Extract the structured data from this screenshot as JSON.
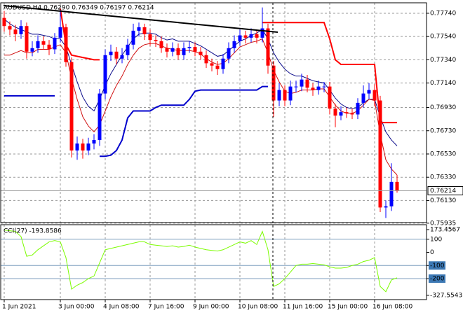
{
  "chart_data": [
    {
      "type": "candlestick",
      "header": "AUDUSD,H4  0.76290 0.76349 0.76197 0.76214",
      "categories": [
        "1 Jun 2021",
        null,
        null,
        null,
        null,
        null,
        null,
        null,
        null,
        null,
        "3 Jun 00:00",
        null,
        null,
        null,
        null,
        null,
        null,
        null,
        "4 Jun 08:00",
        null,
        null,
        null,
        null,
        null,
        null,
        null,
        "7 Jun 16:00",
        null,
        null,
        null,
        null,
        null,
        null,
        null,
        "9 Jun 00:00",
        null,
        null,
        null,
        null,
        null,
        null,
        null,
        "10 Jun 08:00",
        null,
        null,
        null,
        null,
        null,
        null,
        null,
        "11 Jun 16:00",
        null,
        null,
        null,
        null,
        null,
        null,
        null,
        "15 Jun 00:00",
        null,
        null,
        null,
        null,
        null,
        null,
        null,
        "16 Jun 08:00",
        null,
        null,
        null,
        null
      ],
      "open": [
        0.777,
        0.7763,
        0.776,
        0.7756,
        0.7763,
        0.7741,
        0.7744,
        0.775,
        0.7747,
        0.7743,
        0.7753,
        0.7762,
        0.7732,
        0.7656,
        0.7662,
        0.7656,
        0.7662,
        0.7665,
        0.7705,
        0.7738,
        0.7741,
        0.7735,
        0.7738,
        0.7747,
        0.7759,
        0.7762,
        0.7756,
        0.7751,
        0.775,
        0.7744,
        0.7741,
        0.7744,
        0.7738,
        0.7744,
        0.7745,
        0.7741,
        0.7738,
        0.7731,
        0.7729,
        0.7726,
        0.7735,
        0.7744,
        0.775,
        0.7755,
        0.7753,
        0.7756,
        0.7753,
        0.7761,
        0.7729,
        0.7699,
        0.7708,
        0.7699,
        0.7711,
        0.7711,
        0.7717,
        0.771,
        0.7708,
        0.7711,
        0.7711,
        0.7692,
        0.7686,
        0.7689,
        0.7688,
        0.7687,
        0.7697,
        0.7705,
        0.7708,
        0.7699,
        0.7607,
        0.7608,
        0.7629
      ],
      "high": [
        0.7776,
        0.7767,
        0.7764,
        0.7768,
        0.7766,
        0.775,
        0.7755,
        0.7754,
        0.7751,
        0.7757,
        0.7777,
        0.7765,
        0.7736,
        0.7668,
        0.7666,
        0.7667,
        0.767,
        0.7709,
        0.7743,
        0.7747,
        0.7745,
        0.7744,
        0.7752,
        0.7765,
        0.7766,
        0.7765,
        0.776,
        0.7755,
        0.7754,
        0.7748,
        0.7749,
        0.7748,
        0.7749,
        0.775,
        0.7749,
        0.7745,
        0.7742,
        0.7735,
        0.7733,
        0.7739,
        0.7749,
        0.7755,
        0.776,
        0.7759,
        0.7761,
        0.776,
        0.7779,
        0.7765,
        0.7733,
        0.7714,
        0.7712,
        0.7716,
        0.7716,
        0.7722,
        0.7721,
        0.7714,
        0.7716,
        0.7715,
        0.7715,
        0.7696,
        0.7694,
        0.7693,
        0.7692,
        0.7701,
        0.7712,
        0.7714,
        0.7713,
        0.7703,
        0.7613,
        0.7645,
        0.76349
      ],
      "low": [
        0.7758,
        0.7755,
        0.775,
        0.7752,
        0.7735,
        0.7737,
        0.774,
        0.7743,
        0.7738,
        0.7739,
        0.7749,
        0.7728,
        0.765,
        0.7648,
        0.7649,
        0.7652,
        0.7657,
        0.766,
        0.77,
        0.7733,
        0.773,
        0.7731,
        0.7734,
        0.7743,
        0.7754,
        0.7751,
        0.7746,
        0.7745,
        0.774,
        0.7736,
        0.7737,
        0.7734,
        0.7734,
        0.774,
        0.7737,
        0.7734,
        0.7727,
        0.7724,
        0.7721,
        0.7722,
        0.7731,
        0.774,
        0.7746,
        0.7748,
        0.7749,
        0.7748,
        0.7749,
        0.7722,
        0.7685,
        0.7694,
        0.7694,
        0.7695,
        0.7706,
        0.7707,
        0.7706,
        0.7703,
        0.7704,
        0.7706,
        0.7687,
        0.7676,
        0.7682,
        0.7684,
        0.7683,
        0.7683,
        0.7693,
        0.77,
        0.7694,
        0.7603,
        0.7598,
        0.7604,
        0.76197
      ],
      "close": [
        0.7763,
        0.776,
        0.7756,
        0.7763,
        0.7741,
        0.7744,
        0.775,
        0.7747,
        0.7743,
        0.7753,
        0.7762,
        0.7732,
        0.7656,
        0.7662,
        0.7656,
        0.7662,
        0.7665,
        0.7705,
        0.7738,
        0.7741,
        0.7735,
        0.7738,
        0.7747,
        0.7759,
        0.7762,
        0.7756,
        0.7751,
        0.775,
        0.7744,
        0.7741,
        0.7744,
        0.7738,
        0.7744,
        0.7745,
        0.7741,
        0.7738,
        0.7731,
        0.7729,
        0.7726,
        0.7735,
        0.7744,
        0.775,
        0.7755,
        0.7753,
        0.7756,
        0.7753,
        0.7761,
        0.7729,
        0.7699,
        0.7708,
        0.7699,
        0.7711,
        0.7711,
        0.7717,
        0.771,
        0.7708,
        0.7711,
        0.7711,
        0.7692,
        0.7686,
        0.7689,
        0.7688,
        0.7687,
        0.7697,
        0.7705,
        0.7708,
        0.7699,
        0.7607,
        0.7608,
        0.7629,
        0.76214
      ],
      "up_color": "#0000ff",
      "down_color": "#ff0000",
      "series": [
        {
          "color": "#0b0b8a",
          "width": 1,
          "values": [
            0.7769,
            0.7765,
            0.7762,
            0.776,
            0.7758,
            0.7756,
            0.7756,
            0.7755,
            0.7754,
            0.7752,
            0.7752,
            0.7745,
            0.773,
            0.7715,
            0.7702,
            0.7694,
            0.769,
            0.77,
            0.7712,
            0.7722,
            0.773,
            0.7738,
            0.7745,
            0.7752,
            0.7756,
            0.7757,
            0.7757,
            0.7756,
            0.7753,
            0.7751,
            0.7752,
            0.775,
            0.775,
            0.775,
            0.7748,
            0.7746,
            0.7743,
            0.774,
            0.7737,
            0.7738,
            0.7742,
            0.7746,
            0.775,
            0.7752,
            0.7755,
            0.7757,
            0.776,
            0.7752,
            0.774,
            0.7732,
            0.7726,
            0.7722,
            0.772,
            0.772,
            0.7718,
            0.7716,
            0.7715,
            0.7714,
            0.7708,
            0.7701,
            0.7696,
            0.7693,
            0.7692,
            0.7693,
            0.7697,
            0.77,
            0.77,
            0.7685,
            0.7672,
            0.7665,
            0.766
          ]
        },
        {
          "color": "#d01010",
          "width": 1,
          "values": [
            0.7738,
            0.7738,
            0.774,
            0.7742,
            0.774,
            0.774,
            0.7743,
            0.7743,
            0.7743,
            0.7745,
            0.7747,
            0.774,
            0.7718,
            0.77,
            0.7685,
            0.7677,
            0.7672,
            0.7678,
            0.769,
            0.7702,
            0.7712,
            0.772,
            0.773,
            0.7738,
            0.7744,
            0.7747,
            0.7748,
            0.7748,
            0.7746,
            0.7744,
            0.7743,
            0.7742,
            0.7742,
            0.7742,
            0.7741,
            0.7739,
            0.7735,
            0.7732,
            0.773,
            0.7731,
            0.7735,
            0.774,
            0.7745,
            0.7747,
            0.7749,
            0.775,
            0.7752,
            0.774,
            0.7725,
            0.7715,
            0.7707,
            0.7705,
            0.7706,
            0.7708,
            0.7708,
            0.7708,
            0.7709,
            0.7709,
            0.7702,
            0.7695,
            0.769,
            0.7688,
            0.7688,
            0.769,
            0.7695,
            0.77,
            0.7699,
            0.767,
            0.7648,
            0.764,
            0.7635
          ]
        },
        {
          "color": "#ff0000",
          "width": 2,
          "values": [
            null,
            null,
            null,
            null,
            null,
            null,
            null,
            null,
            null,
            null,
            0.7778,
            0.7747,
            0.7738,
            0.7737,
            0.7736,
            0.7735,
            0.7734,
            0.7734,
            null,
            null,
            null,
            null,
            null,
            null,
            null,
            null,
            null,
            null,
            null,
            null,
            null,
            null,
            null,
            null,
            null,
            null,
            null,
            null,
            null,
            null,
            null,
            null,
            null,
            null,
            null,
            null,
            0.7766,
            0.7766,
            0.7766,
            0.7766,
            0.7766,
            0.7766,
            0.7766,
            0.7766,
            0.7766,
            0.7766,
            0.7766,
            0.7766,
            0.7752,
            0.7734,
            0.773,
            0.773,
            0.773,
            0.773,
            0.773,
            0.773,
            0.773,
            0.768,
            0.768,
            0.768,
            0.768
          ]
        },
        {
          "color": "#0000cc",
          "width": 2,
          "values": [
            0.7703,
            0.7703,
            0.7703,
            0.7703,
            0.7703,
            0.7703,
            0.7703,
            0.7703,
            0.7703,
            0.7703,
            null,
            null,
            null,
            null,
            null,
            null,
            null,
            0.7651,
            0.7651,
            0.7652,
            0.7656,
            0.7665,
            0.7684,
            0.769,
            0.769,
            0.769,
            0.769,
            0.7693,
            0.7695,
            0.7695,
            0.7695,
            0.7695,
            0.7695,
            0.77,
            0.7707,
            0.7708,
            0.7708,
            0.7708,
            0.7708,
            0.7708,
            0.7708,
            0.7708,
            0.7708,
            0.7708,
            0.7708,
            0.7708,
            0.7711,
            0.7711,
            null,
            null,
            null,
            null,
            null,
            null,
            null,
            null,
            null,
            null,
            null,
            null,
            null,
            null,
            null,
            null,
            null,
            null,
            null,
            null,
            null,
            null,
            null
          ]
        }
      ],
      "ylim": [
        0.7594,
        0.7783
      ],
      "yticks": [
        {
          "value": 0.7774,
          "label": "0.77740"
        },
        {
          "value": 0.7754,
          "label": "0.77540"
        },
        {
          "value": 0.7734,
          "label": "0.77340"
        },
        {
          "value": 0.7714,
          "label": "0.77140"
        },
        {
          "value": 0.7693,
          "label": "0.76930"
        },
        {
          "value": 0.7673,
          "label": "0.76730"
        },
        {
          "value": 0.7653,
          "label": "0.76530"
        },
        {
          "value": 0.7633,
          "label": "0.76330"
        },
        {
          "value": 0.7613,
          "label": "0.76130"
        },
        {
          "value": 0.75935,
          "label": "0.75935"
        }
      ],
      "last_price": {
        "value": 0.76214,
        "label": "0.76214"
      },
      "grid": true
    },
    {
      "type": "line",
      "title": "CCI(27) -193.8586",
      "series": [
        {
          "color": "#7cfc00",
          "values": [
            170,
            165,
            160,
            120,
            -30,
            -20,
            20,
            50,
            80,
            90,
            80,
            -40,
            -280,
            -250,
            -230,
            -200,
            -180,
            -80,
            20,
            30,
            40,
            50,
            60,
            70,
            80,
            80,
            60,
            55,
            50,
            45,
            50,
            40,
            45,
            55,
            40,
            30,
            20,
            15,
            10,
            20,
            40,
            60,
            80,
            70,
            90,
            60,
            160,
            20,
            -260,
            -240,
            -200,
            -150,
            -100,
            -90,
            -90,
            -85,
            -90,
            -95,
            -110,
            -120,
            -120,
            -115,
            -100,
            -90,
            -70,
            -60,
            -40,
            -260,
            -300,
            -210,
            -193.8586
          ]
        }
      ],
      "ylim": [
        -360,
        211
      ],
      "yticks": [
        173.4567,
        100,
        0,
        -100,
        -200,
        -327.5543
      ],
      "levels": [
        100,
        -100,
        -200
      ],
      "level_color": "#7f9fbf"
    }
  ]
}
